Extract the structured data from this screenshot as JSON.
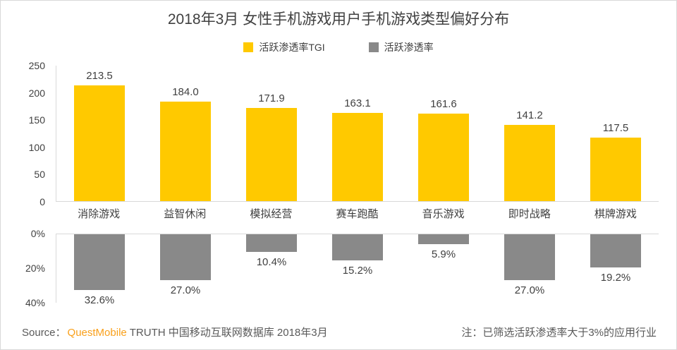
{
  "chart_data": {
    "type": "bar",
    "title": "2018年3月 女性手机游戏用户手机游戏类型偏好分布",
    "categories": [
      "消除游戏",
      "益智休闲",
      "模拟经营",
      "赛车跑酷",
      "音乐游戏",
      "即时战略",
      "棋牌游戏"
    ],
    "series": [
      {
        "name": "活跃渗透率TGI",
        "color": "#FFC900",
        "direction": "up",
        "axis_max": 250,
        "axis_ticks": [
          "250",
          "200",
          "150",
          "100",
          "50",
          "0"
        ],
        "values": [
          213.5,
          184.0,
          171.9,
          163.1,
          161.6,
          141.2,
          117.5
        ],
        "value_suffix": ""
      },
      {
        "name": "活跃渗透率",
        "color": "#898989",
        "direction": "down",
        "axis_max": 40,
        "axis_ticks": [
          "0%",
          "20%",
          "40%"
        ],
        "values": [
          32.6,
          27.0,
          10.4,
          15.2,
          5.9,
          27.0,
          19.2
        ],
        "value_suffix": "%"
      }
    ],
    "legend_position": "top-center",
    "grid": "off"
  },
  "footer": {
    "source_prefix": "Source：",
    "brand": "QuestMobile",
    "source_suffix": "TRUTH 中国移动互联网数据库 2018年3月",
    "note": "注：已筛选活跃渗透率大于3%的应用行业"
  },
  "colors": {
    "accent_yellow": "#FFC900",
    "bar_gray": "#898989",
    "axis_line": "#D9D9D9",
    "text_dark": "#404040",
    "text_gray": "#595959",
    "brand_orange": "#F9A01B"
  }
}
